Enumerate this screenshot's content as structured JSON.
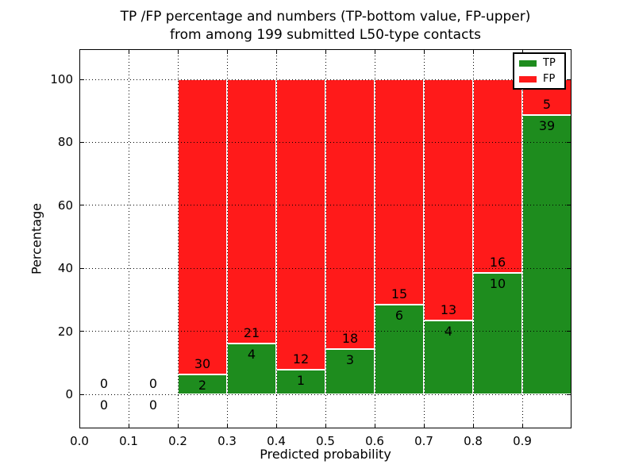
{
  "figure": {
    "title_line1": "TP /FP percentage and numbers (TP-bottom value, FP-upper)",
    "title_line2": "from among 199 submitted L50-type contacts"
  },
  "axes": {
    "xlabel": "Predicted probability",
    "ylabel": "Percentage",
    "xtick_labels": [
      "0.0",
      "0.1",
      "0.2",
      "0.3",
      "0.4",
      "0.5",
      "0.6",
      "0.7",
      "0.8",
      "0.9"
    ],
    "ytick_labels": [
      "0",
      "20",
      "40",
      "60",
      "80",
      "100"
    ],
    "ytick_values": [
      0,
      20,
      40,
      60,
      80,
      100
    ],
    "xgrid_positions": [
      0.1,
      0.2,
      0.3,
      0.4,
      0.5,
      0.6,
      0.7,
      0.8,
      0.9
    ]
  },
  "legend": {
    "position": "upper right",
    "entries": [
      {
        "label": "TP",
        "color": "#1e8c1e"
      },
      {
        "label": "FP",
        "color": "#ff1a1a"
      }
    ]
  },
  "chart_data": {
    "type": "bar",
    "stacked": true,
    "title": "TP /FP percentage and numbers (TP-bottom value, FP-upper) from among 199 submitted L50-type contacts",
    "xlabel": "Predicted probability",
    "ylabel": "Percentage",
    "xlim": [
      0.0,
      1.0
    ],
    "ylim": [
      -11,
      110
    ],
    "grid": "dotted",
    "legend_position": "upper right",
    "total_submitted": 199,
    "bin_width": 0.1,
    "bin_starts": [
      0.0,
      0.1,
      0.2,
      0.3,
      0.4,
      0.5,
      0.6,
      0.7,
      0.8,
      0.9
    ],
    "series": [
      {
        "name": "TP",
        "color": "#1e8c1e",
        "counts": [
          0,
          0,
          2,
          4,
          1,
          3,
          6,
          4,
          10,
          39
        ],
        "pct": [
          0,
          0,
          6.25,
          16.0,
          7.69,
          14.29,
          28.57,
          23.53,
          38.46,
          88.64
        ]
      },
      {
        "name": "FP",
        "color": "#ff1a1a",
        "counts": [
          0,
          0,
          30,
          21,
          12,
          18,
          15,
          13,
          16,
          5
        ],
        "pct": [
          0,
          0,
          93.75,
          84.0,
          92.31,
          85.71,
          71.43,
          76.47,
          61.54,
          11.36
        ]
      }
    ]
  }
}
